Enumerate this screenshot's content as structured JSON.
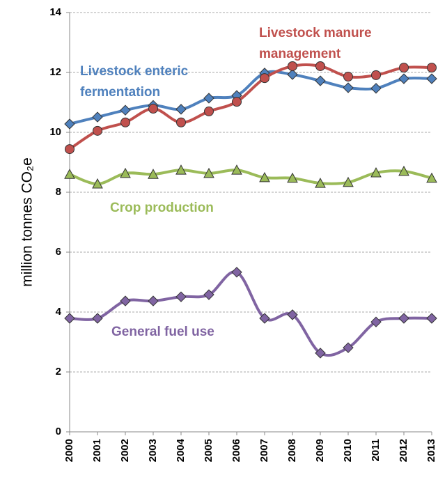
{
  "chart_data": {
    "type": "line",
    "y_label": "million tonnes CO₂e",
    "categories": [
      "2000",
      "2001",
      "2002",
      "2003",
      "2004",
      "2005",
      "2006",
      "2007",
      "2008",
      "2009",
      "2010",
      "2011",
      "2012",
      "2013"
    ],
    "ylim": [
      0,
      14
    ],
    "yticks": [
      0,
      2,
      4,
      6,
      8,
      10,
      12,
      14
    ],
    "grid": true,
    "series": [
      {
        "name": "Livestock enteric fermentation",
        "color": "#4f81bd",
        "marker": "diamond",
        "values": [
          10.28,
          10.51,
          10.74,
          10.9,
          10.77,
          11.14,
          11.23,
          11.98,
          11.93,
          11.72,
          11.49,
          11.47,
          11.79,
          11.79
        ]
      },
      {
        "name": "Livestock manure management",
        "color": "#c0504d",
        "marker": "circle",
        "values": [
          9.44,
          10.05,
          10.33,
          10.79,
          10.33,
          10.7,
          11.02,
          11.81,
          12.21,
          12.21,
          11.86,
          11.91,
          12.16,
          12.16
        ]
      },
      {
        "name": "Crop production",
        "color": "#9bbb59",
        "marker": "triangle",
        "values": [
          8.6,
          8.28,
          8.63,
          8.6,
          8.74,
          8.63,
          8.74,
          8.49,
          8.47,
          8.3,
          8.33,
          8.65,
          8.7,
          8.47
        ]
      },
      {
        "name": "General fuel use",
        "color": "#8064a2",
        "marker": "diamond",
        "values": [
          3.79,
          3.79,
          4.37,
          4.37,
          4.51,
          4.58,
          5.33,
          3.79,
          3.91,
          2.63,
          2.81,
          3.67,
          3.79,
          3.79
        ]
      }
    ]
  }
}
